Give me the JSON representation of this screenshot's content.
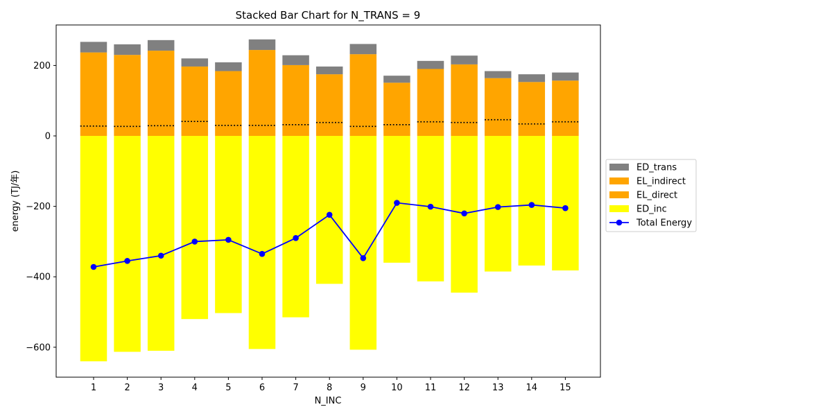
{
  "chart_data": {
    "type": "bar",
    "title": "Stacked Bar Chart for N_TRANS = 9",
    "xlabel": "N_INC",
    "ylabel": "energy (TJ/年)",
    "categories": [
      "1",
      "2",
      "3",
      "4",
      "5",
      "6",
      "7",
      "8",
      "9",
      "10",
      "11",
      "12",
      "13",
      "14",
      "15"
    ],
    "ylim": [
      -685,
      315
    ],
    "yticks": [
      -600,
      -400,
      -200,
      0,
      200
    ],
    "ytick_labels": [
      "−600",
      "−400",
      "−200",
      "0",
      "200"
    ],
    "series": [
      {
        "name": "ED_inc",
        "color": "#ffff00",
        "values": [
          -640,
          -613,
          -610,
          -520,
          -503,
          -605,
          -515,
          -420,
          -607,
          -360,
          -413,
          -445,
          -385,
          -368,
          -382
        ]
      },
      {
        "name": "EL_direct",
        "color": "#ffa500",
        "values": [
          28,
          27,
          29,
          41,
          30,
          30,
          32,
          38,
          27,
          32,
          40,
          38,
          46,
          34,
          40
        ]
      },
      {
        "name": "EL_indirect",
        "color": "#ffa500",
        "values": [
          209,
          203,
          213,
          156,
          154,
          214,
          169,
          137,
          205,
          119,
          150,
          165,
          118,
          119,
          117
        ]
      },
      {
        "name": "ED_trans",
        "color": "#808080",
        "values": [
          30,
          30,
          30,
          23,
          25,
          30,
          28,
          22,
          29,
          20,
          23,
          25,
          20,
          22,
          23
        ]
      }
    ],
    "line_series": {
      "name": "Total Energy",
      "color": "#0000ff",
      "values": [
        -372,
        -355,
        -340,
        -300,
        -295,
        -335,
        -290,
        -224,
        -347,
        -190,
        -201,
        -220,
        -202,
        -196,
        -205
      ]
    },
    "legend_order": [
      "ED_trans",
      "EL_indirect",
      "EL_direct",
      "ED_inc",
      "Total Energy"
    ],
    "legend_position": "outside-right",
    "grid": false
  }
}
